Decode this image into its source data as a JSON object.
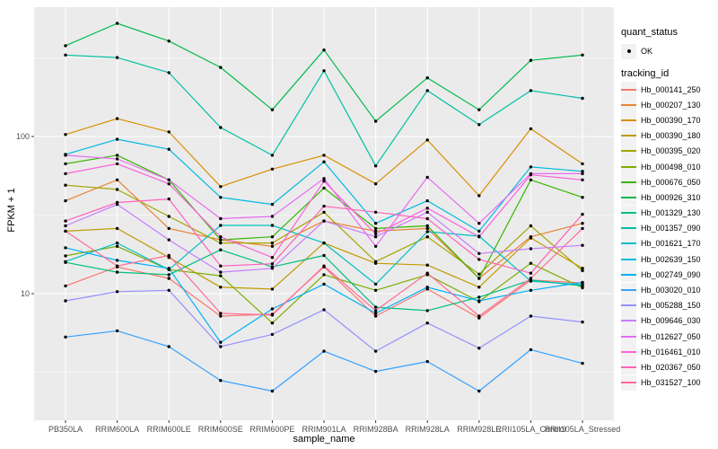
{
  "chart_data": {
    "type": "line",
    "title": "",
    "xlabel": "sample_name",
    "ylabel": "FPKM + 1",
    "yscale": "log10",
    "ylim": [
      1.6,
      660
    ],
    "yticks": [
      100,
      10
    ],
    "ytick_labels": [
      "100",
      "10"
    ],
    "minor_gridlines": [
      3.162,
      31.623,
      316.228
    ],
    "grid": "white major and minor gridlines on gray panel",
    "legend_position": "right",
    "point_marker": "small black dot on every data point (quant_status OK)",
    "x": [
      "PB350LA",
      "RRIM600LA",
      "RRIM600LE",
      "RRIM600SE",
      "RRIM600PE",
      "RRIM901LA",
      "RRIM928BA",
      "RRIM928LA",
      "RRIM928LE",
      "RRII105LA_Control",
      "RRII105LA_Stressed"
    ],
    "series": [
      {
        "name": "Hb_000141_250",
        "color": "#F8766D",
        "values": [
          11.2,
          14.8,
          12.5,
          7.2,
          7.4,
          14.8,
          7.2,
          10.7,
          7.0,
          12.2,
          11.7
        ]
      },
      {
        "name": "Hb_000207_130",
        "color": "#EA8331",
        "values": [
          39,
          53,
          26,
          22,
          20,
          29,
          25,
          26,
          12.5,
          23,
          28
        ]
      },
      {
        "name": "Hb_000390_170",
        "color": "#D89000",
        "values": [
          103,
          130,
          107,
          48,
          62,
          76,
          50,
          95,
          42,
          112,
          67
        ]
      },
      {
        "name": "Hb_000390_180",
        "color": "#C09B00",
        "values": [
          25,
          26,
          17,
          11,
          10.7,
          21,
          15.6,
          15.2,
          11,
          22.6,
          14.5
        ]
      },
      {
        "name": "Hb_000395_020",
        "color": "#A3A500",
        "values": [
          49,
          46,
          31,
          21,
          21,
          33,
          16,
          23,
          13.3,
          27,
          14
        ]
      },
      {
        "name": "Hb_000498_010",
        "color": "#7CAE00",
        "values": [
          17.4,
          20,
          14.2,
          13,
          6.5,
          13.2,
          10.5,
          13.2,
          8.9,
          15.6,
          10.9
        ]
      },
      {
        "name": "Hb_000676_050",
        "color": "#39B600",
        "values": [
          67,
          76,
          53,
          22,
          23,
          47,
          26,
          27,
          12.5,
          53,
          41
        ]
      },
      {
        "name": "Hb_000926_310",
        "color": "#00BB4E",
        "values": [
          378,
          525,
          405,
          275,
          148,
          355,
          125,
          236,
          148,
          305,
          330
        ]
      },
      {
        "name": "Hb_001329_130",
        "color": "#00BF7D",
        "values": [
          15.8,
          13.7,
          13.2,
          19,
          14.8,
          17.5,
          8.2,
          7.8,
          9.5,
          12.2,
          11.2
        ]
      },
      {
        "name": "Hb_001357_090",
        "color": "#00C1A3",
        "values": [
          330,
          318,
          255,
          114,
          76,
          262,
          65,
          196,
          119,
          196,
          175
        ]
      },
      {
        "name": "Hb_001621_170",
        "color": "#00BFC4",
        "values": [
          16,
          21,
          14.2,
          27.2,
          27.2,
          21,
          11.5,
          24.8,
          23.2,
          12,
          11.4
        ]
      },
      {
        "name": "Hb_002639_150",
        "color": "#00BAE0",
        "values": [
          77,
          96,
          83,
          41,
          37,
          69,
          28,
          39,
          25,
          64,
          60
        ]
      },
      {
        "name": "Hb_002749_090",
        "color": "#00B0F6",
        "values": [
          19.6,
          16.3,
          14.5,
          4.9,
          8.0,
          11.5,
          7.5,
          11.0,
          9.0,
          10.5,
          11.8
        ]
      },
      {
        "name": "Hb_003020_010",
        "color": "#35A2FF",
        "values": [
          5.3,
          5.8,
          4.6,
          2.8,
          2.4,
          4.3,
          3.2,
          3.7,
          2.4,
          4.4,
          3.6
        ]
      },
      {
        "name": "Hb_005288_150",
        "color": "#9590FF",
        "values": [
          9.0,
          10.3,
          10.5,
          4.6,
          5.5,
          7.9,
          4.3,
          6.5,
          4.5,
          7.2,
          6.6
        ]
      },
      {
        "name": "Hb_009646_030",
        "color": "#C77CFF",
        "values": [
          27,
          37,
          22,
          13.7,
          14.5,
          29,
          23,
          33,
          18,
          19.3,
          20.3
        ]
      },
      {
        "name": "Hb_012627_050",
        "color": "#E76BF3",
        "values": [
          76,
          72,
          53,
          30,
          31,
          54,
          20,
          55,
          28,
          58,
          58
        ]
      },
      {
        "name": "Hb_016461_010",
        "color": "#FA62DB",
        "values": [
          58,
          67,
          50,
          23,
          17,
          52,
          24,
          35,
          23,
          57,
          53
        ]
      },
      {
        "name": "Hb_020367_050",
        "color": "#FF62BC",
        "values": [
          29,
          38,
          40,
          15,
          15.5,
          36,
          33,
          30,
          16.5,
          13.5,
          32
        ]
      },
      {
        "name": "Hb_031527_100",
        "color": "#FF6A98",
        "values": [
          25,
          15,
          17.5,
          7.5,
          7.3,
          15,
          7.8,
          13.5,
          7.2,
          12.5,
          26
        ]
      }
    ]
  },
  "legend": {
    "quant_status_title": "quant_status",
    "quant_status_items": [
      {
        "label": "OK",
        "symbol": "black-point"
      }
    ],
    "tracking_id_title": "tracking_id"
  },
  "colors": {
    "background": "#FFFFFF",
    "panel_bg": "#EBEBEB",
    "gridline": "#FFFFFF",
    "axis_text": "#4D4D4D",
    "tick_mark": "#333333",
    "legend_key_bg": "#F2F2F2",
    "point": "#000000"
  }
}
